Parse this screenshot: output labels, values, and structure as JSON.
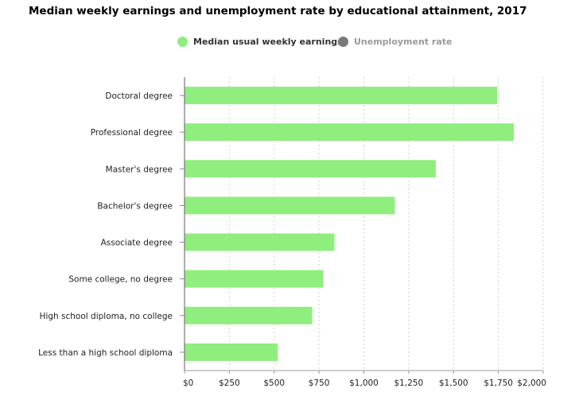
{
  "title": "Median weekly earnings and unemployment rate by educational attainment, 2017",
  "legend": {
    "items": [
      {
        "label": "Median usual weekly earnings",
        "color": "#90ee7e",
        "active": true
      },
      {
        "label": "Unemployment rate",
        "color": "#7a7a7a",
        "active": false
      }
    ]
  },
  "chart_data": {
    "type": "bar",
    "orientation": "horizontal",
    "categories": [
      "Doctoral degree",
      "Professional degree",
      "Master's degree",
      "Bachelor's degree",
      "Associate degree",
      "Some college, no degree",
      "High school diploma, no college",
      "Less than a high school diploma"
    ],
    "series": [
      {
        "name": "Median usual weekly earnings",
        "color": "#90ee7e",
        "values": [
          1743,
          1836,
          1401,
          1173,
          836,
          774,
          712,
          520
        ]
      }
    ],
    "x_ticks": [
      "$0",
      "$250",
      "$500",
      "$750",
      "$1,000",
      "$1,250",
      "$1,500",
      "$1,750",
      "$2,000"
    ],
    "xlim": [
      0,
      2000
    ],
    "grid": true,
    "legend_position": "top-center"
  }
}
